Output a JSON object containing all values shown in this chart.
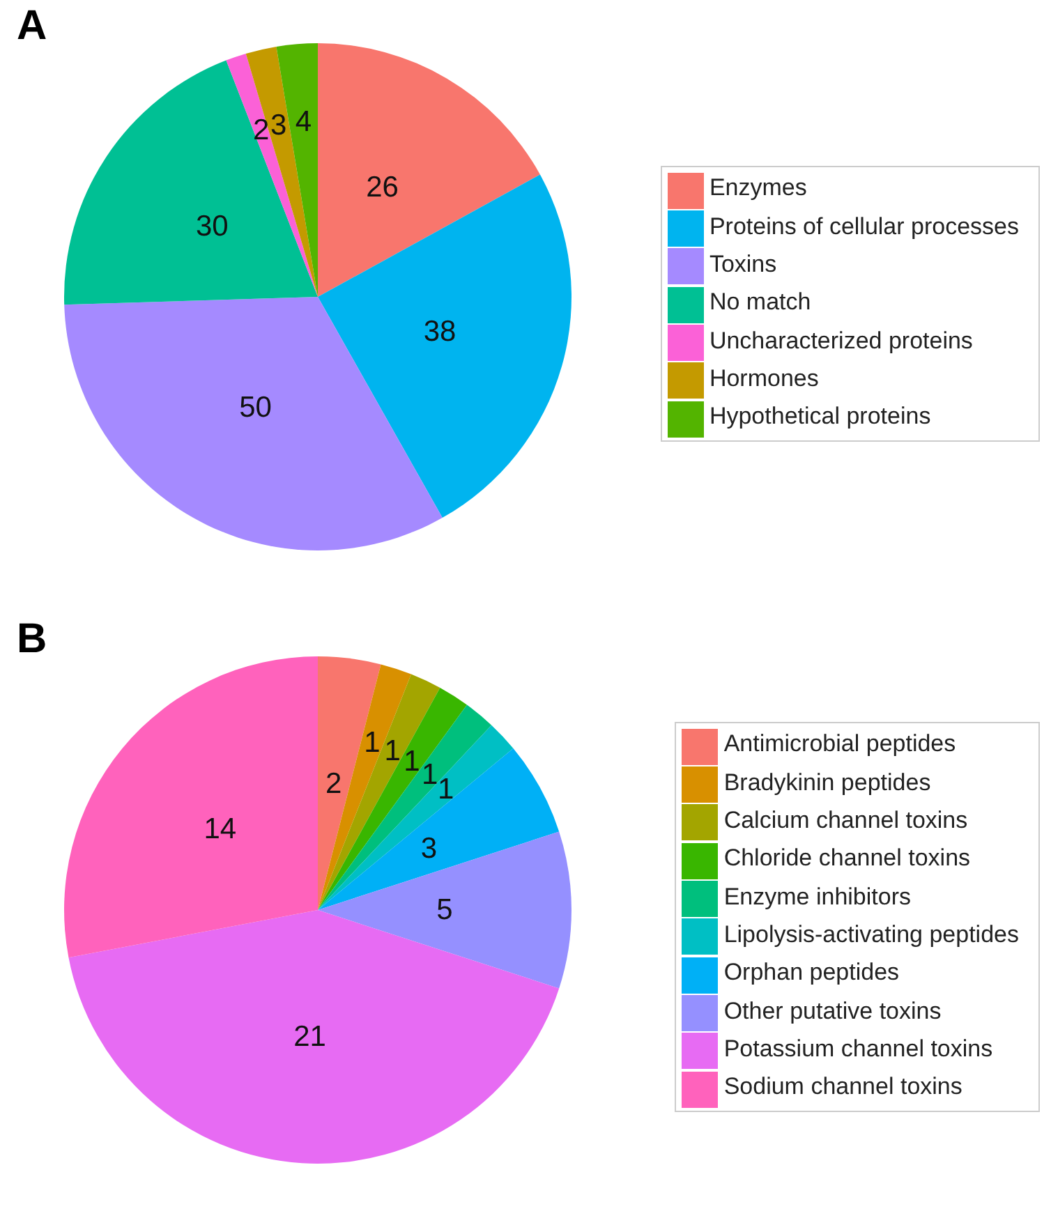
{
  "chart_data": [
    {
      "type": "pie",
      "title": "A",
      "legend": "right",
      "data_labels": true,
      "categories": [
        "Enzymes",
        "Proteins of cellular processes",
        "Toxins",
        "No match",
        "Uncharacterized proteins",
        "Hormones",
        "Hypothetical proteins"
      ],
      "values": [
        26,
        38,
        50,
        30,
        2,
        3,
        4
      ],
      "colors": [
        "#f8766d",
        "#00b4ef",
        "#a58aff",
        "#00c094",
        "#fb61d7",
        "#c49a00",
        "#53b400"
      ]
    },
    {
      "type": "pie",
      "title": "B",
      "legend": "right",
      "data_labels": true,
      "categories": [
        "Antimicrobial peptides",
        "Bradykinin peptides",
        "Calcium channel toxins",
        "Chloride channel toxins",
        "Enzyme inhibitors",
        "Lipolysis-activating peptides",
        "Orphan peptides",
        "Other putative toxins",
        "Potassium channel toxins",
        "Sodium channel toxins"
      ],
      "values": [
        2,
        1,
        1,
        1,
        1,
        1,
        3,
        5,
        21,
        14
      ],
      "colors": [
        "#f8766d",
        "#d89000",
        "#a3a500",
        "#39b600",
        "#00bf7d",
        "#00bfc4",
        "#00b0f6",
        "#9590ff",
        "#e76bf3",
        "#ff62bc"
      ]
    }
  ]
}
